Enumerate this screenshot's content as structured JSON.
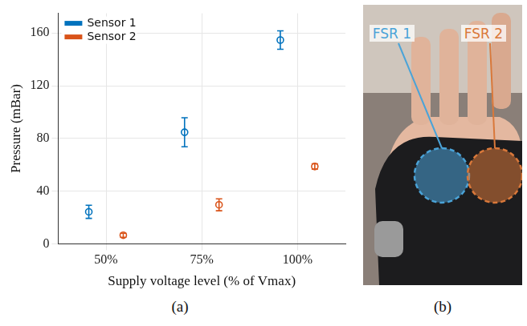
{
  "chart_data": {
    "type": "scatter",
    "x_label": "Supply voltage level (% of Vmax)",
    "y_label": "Pressure (mBar)",
    "categories": [
      "50%",
      "75%",
      "100%"
    ],
    "series": [
      {
        "name": "Sensor 1",
        "color": "#0072BD",
        "marker": "circle",
        "values": [
          24.3,
          84.7,
          154.7
        ],
        "errors": [
          5,
          11,
          7
        ]
      },
      {
        "name": "Sensor 2",
        "color": "#D95319",
        "marker": "circle",
        "values": [
          6.5,
          29.6,
          58.7
        ],
        "errors": [
          1.5,
          4.5,
          2
        ]
      }
    ],
    "ylim": [
      0,
      175
    ],
    "yticks": [
      0,
      40,
      80,
      120,
      160
    ],
    "grid": true,
    "legend": "upper left"
  },
  "panel_labels": [
    "(a)",
    "(b)"
  ],
  "panel_b": {
    "annotations": [
      {
        "text": "FSR 1",
        "color": "#4aa3d8"
      },
      {
        "text": "FSR 2",
        "color": "#d9783a"
      }
    ]
  }
}
